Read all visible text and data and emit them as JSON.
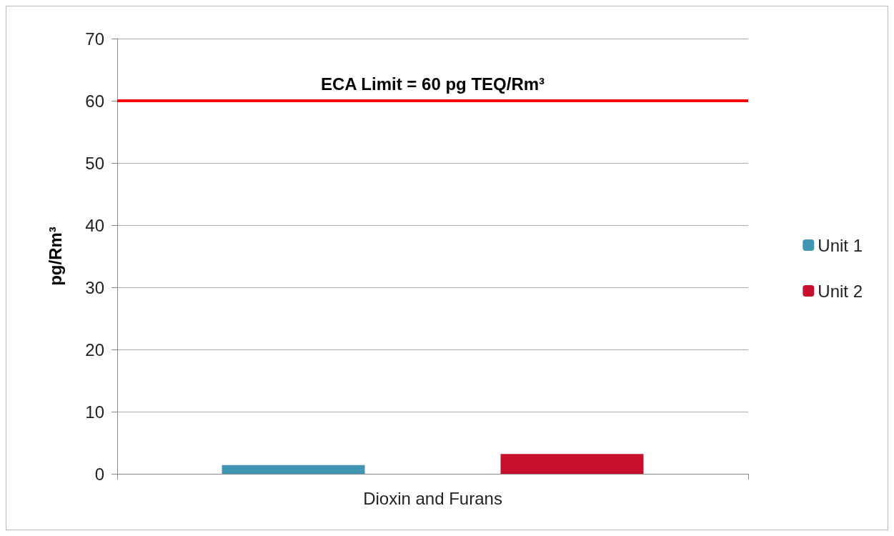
{
  "chart_data": {
    "type": "bar",
    "ylabel": "pg/Rm³",
    "categories": [
      "Dioxin and Furans"
    ],
    "series": [
      {
        "name": "Unit 1",
        "color": "#4196b4",
        "values": [
          1.4
        ]
      },
      {
        "name": "Unit 2",
        "color": "#c8102e",
        "values": [
          3.2
        ]
      }
    ],
    "ylim": [
      0,
      70
    ],
    "yticks": [
      0,
      10,
      20,
      30,
      40,
      50,
      60,
      70
    ],
    "grid": "y",
    "legend": "right",
    "ref_lines": [
      {
        "axis": "y",
        "value": 60,
        "label": "ECA Limit = 60 pg TEQ/Rm³",
        "color": "#ff0000"
      }
    ]
  }
}
